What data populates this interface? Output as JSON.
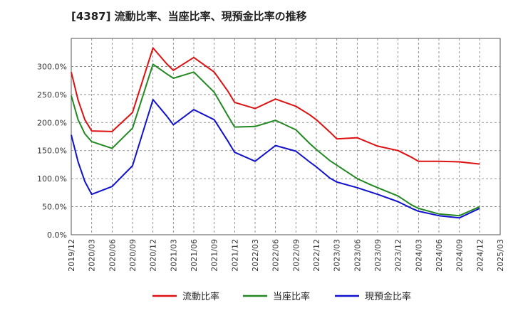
{
  "chart_data": {
    "type": "line",
    "title": "[4387]  流動比率、当座比率、現預金比率の推移",
    "xlabel": "",
    "ylabel": "",
    "ylim": [
      0,
      350
    ],
    "yticks": [
      0,
      50,
      100,
      150,
      200,
      250,
      300
    ],
    "ytick_labels": [
      "0.0%",
      "50.0%",
      "100.0%",
      "150.0%",
      "200.0%",
      "250.0%",
      "300.0%"
    ],
    "xtick_labels": [
      "2019/12",
      "2020/03",
      "2020/06",
      "2020/09",
      "2020/12",
      "2021/03",
      "2021/06",
      "2021/09",
      "2021/12",
      "2022/03",
      "2022/06",
      "2022/09",
      "2022/12",
      "2023/03",
      "2023/06",
      "2023/09",
      "2023/12",
      "2024/03",
      "2024/06",
      "2024/09",
      "2024/12",
      "2025/03"
    ],
    "x": [
      "2019/12",
      "2020/01",
      "2020/02",
      "2020/03",
      "2020/06",
      "2020/09",
      "2020/12",
      "2021/02",
      "2021/03",
      "2021/06",
      "2021/09",
      "2021/11",
      "2021/12",
      "2022/03",
      "2022/06",
      "2022/09",
      "2022/11",
      "2022/12",
      "2023/02",
      "2023/03",
      "2023/06",
      "2023/08",
      "2023/09",
      "2023/12",
      "2024/02",
      "2024/03",
      "2024/06",
      "2024/09",
      "2024/12"
    ],
    "grid": true,
    "legend_position": "bottom",
    "series": [
      {
        "name": "流動比率",
        "color": "#dd1111",
        "values": [
          290,
          240,
          205,
          185,
          184,
          218,
          333,
          305,
          293,
          316,
          290,
          256,
          236,
          225,
          242,
          229,
          214,
          205,
          183,
          171,
          173,
          163,
          158,
          150,
          138,
          131,
          131,
          130,
          126
        ]
      },
      {
        "name": "当座比率",
        "color": "#228822",
        "values": [
          248,
          205,
          180,
          166,
          154,
          190,
          304,
          287,
          279,
          290,
          254,
          212,
          192,
          193,
          204,
          187,
          163,
          152,
          132,
          124,
          100,
          89,
          84,
          69,
          53,
          47,
          37,
          34,
          50
        ]
      },
      {
        "name": "現預金比率",
        "color": "#1111cc",
        "values": [
          178,
          130,
          95,
          72,
          86,
          123,
          241,
          212,
          196,
          223,
          205,
          167,
          147,
          131,
          159,
          149,
          130,
          121,
          101,
          94,
          84,
          76,
          72,
          59,
          47,
          42,
          34,
          30,
          47
        ]
      }
    ]
  }
}
